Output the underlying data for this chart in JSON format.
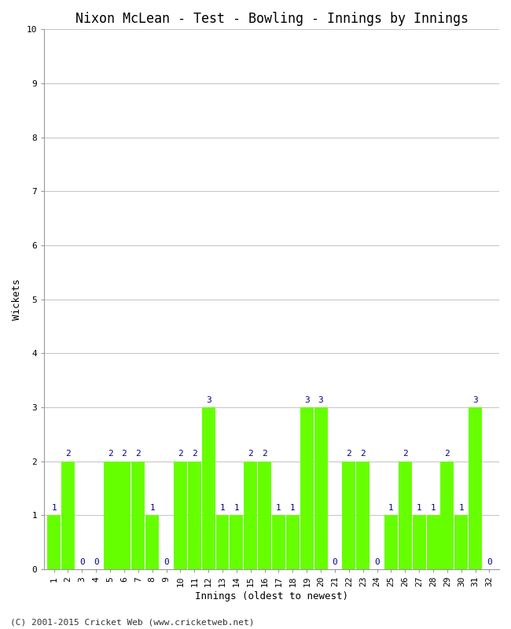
{
  "title": "Nixon McLean - Test - Bowling - Innings by Innings",
  "xlabel": "Innings (oldest to newest)",
  "ylabel": "Wickets",
  "innings": [
    1,
    2,
    3,
    4,
    5,
    6,
    7,
    8,
    9,
    10,
    11,
    12,
    13,
    14,
    15,
    16,
    17,
    18,
    19,
    20,
    21,
    22,
    23,
    24,
    25,
    26,
    27,
    28,
    29,
    30,
    31,
    32
  ],
  "wickets": [
    1,
    2,
    0,
    0,
    2,
    2,
    2,
    1,
    0,
    2,
    2,
    3,
    1,
    1,
    2,
    2,
    1,
    1,
    3,
    3,
    0,
    2,
    2,
    0,
    1,
    2,
    1,
    1,
    2,
    1,
    3,
    0
  ],
  "bar_color": "#66ff00",
  "label_color": "#000080",
  "background_color": "#ffffff",
  "grid_color": "#c8c8c8",
  "ylim": [
    0,
    10
  ],
  "yticks": [
    0,
    1,
    2,
    3,
    4,
    5,
    6,
    7,
    8,
    9,
    10
  ],
  "title_fontsize": 12,
  "axis_label_fontsize": 9,
  "tick_fontsize": 8,
  "value_label_fontsize": 8,
  "footer": "(C) 2001-2015 Cricket Web (www.cricketweb.net)"
}
